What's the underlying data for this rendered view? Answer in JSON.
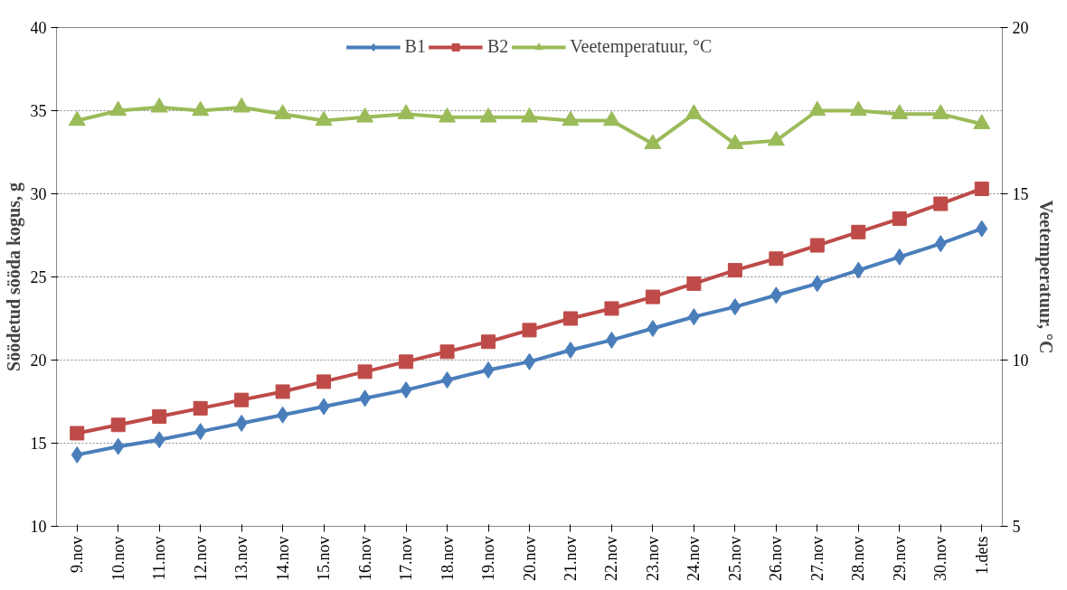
{
  "chart_data": {
    "type": "line",
    "categories": [
      "9.nov",
      "10.nov",
      "11.nov",
      "12.nov",
      "13.nov",
      "14.nov",
      "15.nov",
      "16.nov",
      "17.nov",
      "18.nov",
      "19.nov",
      "20.nov",
      "21.nov",
      "22.nov",
      "23.nov",
      "24.nov",
      "25.nov",
      "26.nov",
      "27.nov",
      "28.nov",
      "29.nov",
      "30.nov",
      "1.dets"
    ],
    "series": [
      {
        "name": "B1",
        "color": "#4a7ebb",
        "marker": "diamond",
        "values": [
          14.3,
          14.8,
          15.2,
          15.7,
          16.2,
          16.7,
          17.2,
          17.7,
          18.2,
          18.8,
          19.4,
          19.9,
          20.6,
          21.2,
          21.9,
          22.6,
          23.2,
          23.9,
          24.6,
          25.4,
          26.2,
          27.0,
          27.9
        ]
      },
      {
        "name": "B2",
        "color": "#be4b48",
        "marker": "square",
        "values": [
          15.6,
          16.1,
          16.6,
          17.1,
          17.6,
          18.1,
          18.7,
          19.3,
          19.9,
          20.5,
          21.1,
          21.8,
          22.5,
          23.1,
          23.8,
          24.6,
          25.4,
          26.1,
          26.9,
          27.7,
          28.5,
          29.4,
          30.3
        ]
      },
      {
        "name": "Veetemperatuur, °C",
        "color": "#9bbb59",
        "marker": "triangle",
        "axis": "y2",
        "values": [
          17.2,
          17.5,
          17.6,
          17.5,
          17.6,
          17.4,
          17.2,
          17.3,
          17.4,
          17.3,
          17.3,
          17.3,
          17.2,
          17.2,
          16.5,
          17.4,
          16.5,
          16.6,
          17.5,
          17.5,
          17.4,
          17.4,
          17.1
        ]
      }
    ],
    "ylabel": "Söödetud sööda kogus, g",
    "y2label": "Veetemperatuur, °C",
    "ylim": [
      10,
      40
    ],
    "yticks": [
      10,
      15,
      20,
      25,
      30,
      35,
      40
    ],
    "y2lim": [
      5,
      20
    ],
    "y2ticks": [
      5,
      10,
      15,
      20
    ],
    "grid": "y",
    "legend": "top",
    "line_style": "solid"
  }
}
